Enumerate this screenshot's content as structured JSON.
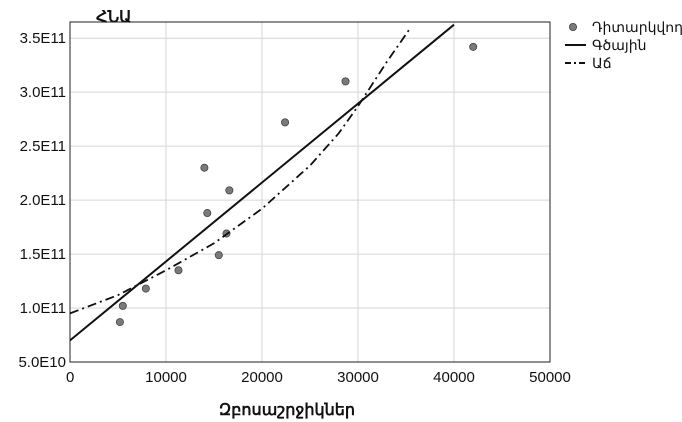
{
  "chart_data": {
    "type": "scatter",
    "ylabel": "ՀՆԱ",
    "xlabel": "Զբոսաշրջիկներ",
    "xlim": [
      0,
      50000
    ],
    "ylim": [
      50000000000,
      365000000000
    ],
    "x_ticks": [
      0,
      10000,
      20000,
      30000,
      40000,
      50000
    ],
    "x_tick_labels": [
      "0",
      "10000",
      "20000",
      "30000",
      "40000",
      "50000"
    ],
    "y_ticks": [
      50000000000,
      100000000000,
      150000000000,
      200000000000,
      250000000000,
      300000000000,
      350000000000
    ],
    "y_tick_labels": [
      "5.0E10",
      "1.0E11",
      "1.5E11",
      "2.0E11",
      "2.5E11",
      "3.0E11",
      "3.5E11"
    ],
    "grid": true,
    "legend_position": "right",
    "legend": [
      "Դիտարկվող",
      "Գծային",
      "Աճ"
    ],
    "series": [
      {
        "name": "Դիտարկվող",
        "kind": "scatter",
        "color": "#7a7a7a",
        "points": [
          [
            5200,
            87000000000
          ],
          [
            5500,
            102000000000
          ],
          [
            7900,
            118000000000
          ],
          [
            11300,
            135000000000
          ],
          [
            14000,
            230000000000
          ],
          [
            14300,
            188000000000
          ],
          [
            15500,
            149000000000
          ],
          [
            16300,
            169000000000
          ],
          [
            16600,
            209000000000
          ],
          [
            22400,
            272000000000
          ],
          [
            28700,
            310000000000
          ],
          [
            42000,
            342000000000
          ]
        ]
      },
      {
        "name": "Գծային",
        "kind": "line",
        "style": "solid",
        "color": "#111111",
        "points": [
          [
            0,
            70000000000
          ],
          [
            40000,
            362500000000
          ]
        ]
      },
      {
        "name": "Աճ",
        "kind": "line",
        "style": "dashdot",
        "color": "#111111",
        "points": [
          [
            0,
            95000000000
          ],
          [
            5000,
            112000000000
          ],
          [
            10000,
            135000000000
          ],
          [
            15000,
            160000000000
          ],
          [
            20000,
            192000000000
          ],
          [
            25000,
            232000000000
          ],
          [
            28000,
            262000000000
          ],
          [
            30000,
            287000000000
          ],
          [
            33000,
            328000000000
          ],
          [
            35500,
            360000000000
          ]
        ]
      }
    ]
  }
}
